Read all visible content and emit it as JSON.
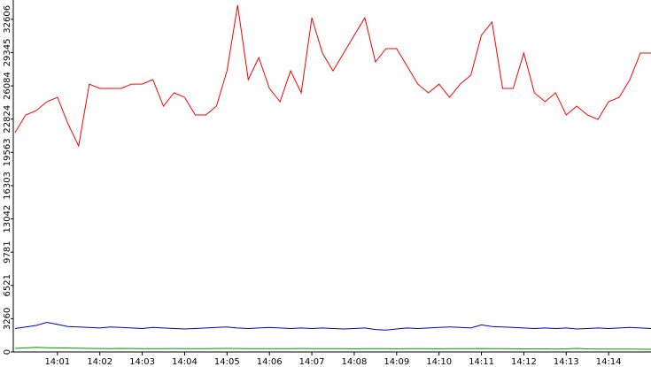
{
  "chart_data": {
    "type": "line",
    "categories": [
      null,
      null,
      null,
      null,
      "14:01",
      null,
      null,
      null,
      "14:02",
      null,
      null,
      null,
      "14:03",
      null,
      null,
      null,
      "14:04",
      null,
      null,
      null,
      "14:05",
      null,
      null,
      null,
      "14:06",
      null,
      null,
      null,
      "14:07",
      null,
      null,
      null,
      "14:08",
      null,
      null,
      null,
      "14:09",
      null,
      null,
      null,
      "14:10",
      null,
      null,
      null,
      "14:11",
      null,
      null,
      null,
      "14:12",
      null,
      null,
      null,
      "14:13",
      null,
      null,
      null,
      "14:14",
      null,
      null,
      null,
      null
    ],
    "series": [
      {
        "name": null,
        "color": "#ff0000",
        "values": [
          21500,
          23230,
          23660,
          24530,
          24960,
          22360,
          20190,
          26260,
          25830,
          25830,
          25830,
          26260,
          26260,
          26700,
          24100,
          25400,
          24960,
          23230,
          23230,
          24100,
          27560,
          34000,
          26700,
          28860,
          25830,
          24530,
          27560,
          25400,
          32760,
          29300,
          27560,
          29300,
          31030,
          32760,
          28430,
          29730,
          29730,
          28000,
          26260,
          25400,
          26260,
          24960,
          26260,
          27130,
          31030,
          32330,
          25830,
          25830,
          29300,
          25400,
          24530,
          25400,
          23230,
          24100,
          23230,
          22800,
          24530,
          24960,
          26700,
          29300,
          29300
        ]
      },
      {
        "name": null,
        "color": "#0000cc",
        "values": [
          2300,
          2450,
          2600,
          2900,
          2700,
          2500,
          2450,
          2400,
          2350,
          2450,
          2400,
          2350,
          2300,
          2400,
          2350,
          2300,
          2250,
          2300,
          2350,
          2400,
          2450,
          2350,
          2300,
          2350,
          2400,
          2350,
          2300,
          2350,
          2300,
          2350,
          2300,
          2250,
          2300,
          2350,
          2200,
          2150,
          2250,
          2350,
          2300,
          2350,
          2400,
          2450,
          2400,
          2350,
          2650,
          2500,
          2450,
          2400,
          2350,
          2300,
          2350,
          2300,
          2350,
          2250,
          2300,
          2350,
          2300,
          2350,
          2400,
          2350,
          2300
        ]
      },
      {
        "name": null,
        "color": "#009900",
        "values": [
          350,
          400,
          450,
          420,
          400,
          380,
          360,
          350,
          340,
          330,
          350,
          340,
          330,
          320,
          330,
          340,
          330,
          320,
          330,
          340,
          350,
          340,
          330,
          320,
          330,
          320,
          330,
          340,
          330,
          320,
          330,
          320,
          310,
          320,
          330,
          320,
          310,
          320,
          330,
          320,
          310,
          320,
          330,
          320,
          340,
          330,
          320,
          310,
          300,
          310,
          300,
          290,
          300,
          350,
          300,
          290,
          280,
          290,
          280,
          270,
          260
        ]
      }
    ],
    "ylim": [
      0,
      34500
    ],
    "yticks": [
      0,
      3260,
      6521,
      9781,
      13042,
      16303,
      19563,
      22824,
      26084,
      29345,
      32606
    ],
    "grid": false
  }
}
